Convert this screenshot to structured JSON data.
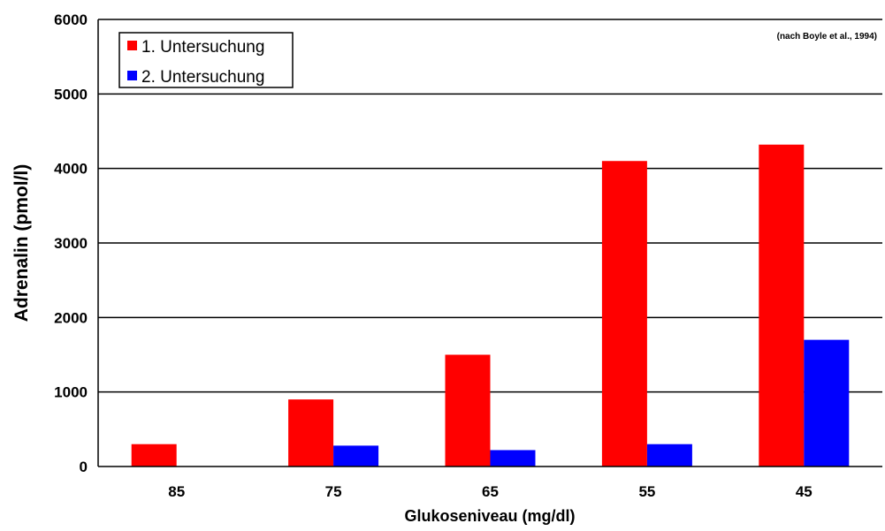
{
  "chart_data": {
    "type": "bar",
    "title": "",
    "source_note": "(nach Boyle et al., 1994)",
    "xlabel": "Glukoseniveau (mg/dl)",
    "ylabel": "Adrenalin (pmol/l)",
    "ylim": [
      0,
      6000
    ],
    "yticks": [
      0,
      1000,
      2000,
      3000,
      4000,
      5000,
      6000
    ],
    "categories": [
      "85",
      "75",
      "65",
      "55",
      "45"
    ],
    "grid": "horizontal",
    "legend_position": "top-left",
    "series": [
      {
        "name": "1. Untersuchung",
        "color": "#ff0000",
        "values": [
          300,
          900,
          1500,
          4100,
          4320
        ]
      },
      {
        "name": "2. Untersuchung",
        "color": "#0000ff",
        "values": [
          0,
          280,
          220,
          300,
          1700
        ]
      }
    ]
  }
}
